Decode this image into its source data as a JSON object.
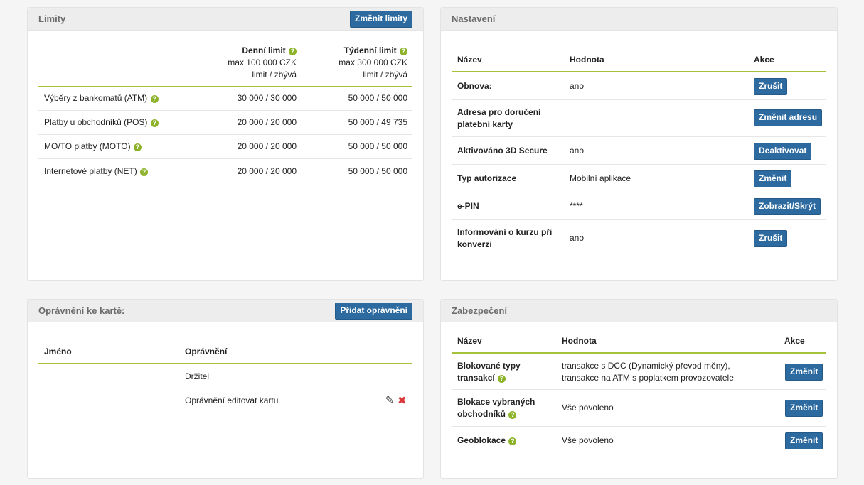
{
  "limity": {
    "title": "Limity",
    "change_button": "Změnit limity",
    "col_daily": {
      "title": "Denní limit",
      "max": "max 100 000 CZK",
      "sub": "limit / zbývá"
    },
    "col_weekly": {
      "title": "Týdenní limit",
      "max": "max 300 000 CZK",
      "sub": "limit / zbývá"
    },
    "rows": [
      {
        "label": "Výběry z bankomatů (ATM)",
        "daily": "30 000 / 30 000",
        "weekly": "50 000 / 50 000"
      },
      {
        "label": "Platby u obchodníků (POS)",
        "daily": "20 000 / 20 000",
        "weekly": "50 000 / 49 735"
      },
      {
        "label": "MO/TO platby (MOTO)",
        "daily": "20 000 / 20 000",
        "weekly": "50 000 / 50 000"
      },
      {
        "label": "Internetové platby (NET)",
        "daily": "20 000 / 20 000",
        "weekly": "50 000 / 50 000"
      }
    ]
  },
  "nastaveni": {
    "title": "Nastavení",
    "headers": {
      "name": "Název",
      "value": "Hodnota",
      "action": "Akce"
    },
    "rows": [
      {
        "name": "Obnova:",
        "value": "ano",
        "action": "Zrušit"
      },
      {
        "name": "Adresa pro doručení platební karty",
        "value": "",
        "action": "Změnit adresu"
      },
      {
        "name": "Aktivováno 3D Secure",
        "value": "ano",
        "action": "Deaktivovat"
      },
      {
        "name": "Typ autorizace",
        "value": "Mobilní aplikace",
        "action": "Změnit"
      },
      {
        "name": "e-PIN",
        "value": "****",
        "action": "Zobrazit/Skrýt"
      },
      {
        "name": "Informování o kurzu při konverzi",
        "value": "ano",
        "action": "Zrušit"
      }
    ]
  },
  "opravneni": {
    "title": "Oprávnění ke kartě:",
    "add_button": "Přidat oprávnění",
    "headers": {
      "name": "Jméno",
      "permission": "Oprávnění"
    },
    "rows": [
      {
        "name": "",
        "permission": "Držitel"
      },
      {
        "name": "",
        "permission": "Oprávnění editovat kartu"
      }
    ]
  },
  "zabezpeceni": {
    "title": "Zabezpečení",
    "headers": {
      "name": "Název",
      "value": "Hodnota",
      "action": "Akce"
    },
    "rows": [
      {
        "name": "Blokované typy transakcí",
        "value": "transakce s DCC (Dynamický převod měny), transakce na ATM s poplatkem provozovatele",
        "action": "Změnit"
      },
      {
        "name": "Blokace vybraných obchodníků",
        "value": "Vše povoleno",
        "action": "Změnit"
      },
      {
        "name": "Geoblokace",
        "value": "Vše povoleno",
        "action": "Změnit"
      }
    ]
  },
  "colors": {
    "accent_line": "#a6c23a",
    "button": "#2c6aa0",
    "help_icon": "#8db32a",
    "delete": "#d9393a"
  }
}
